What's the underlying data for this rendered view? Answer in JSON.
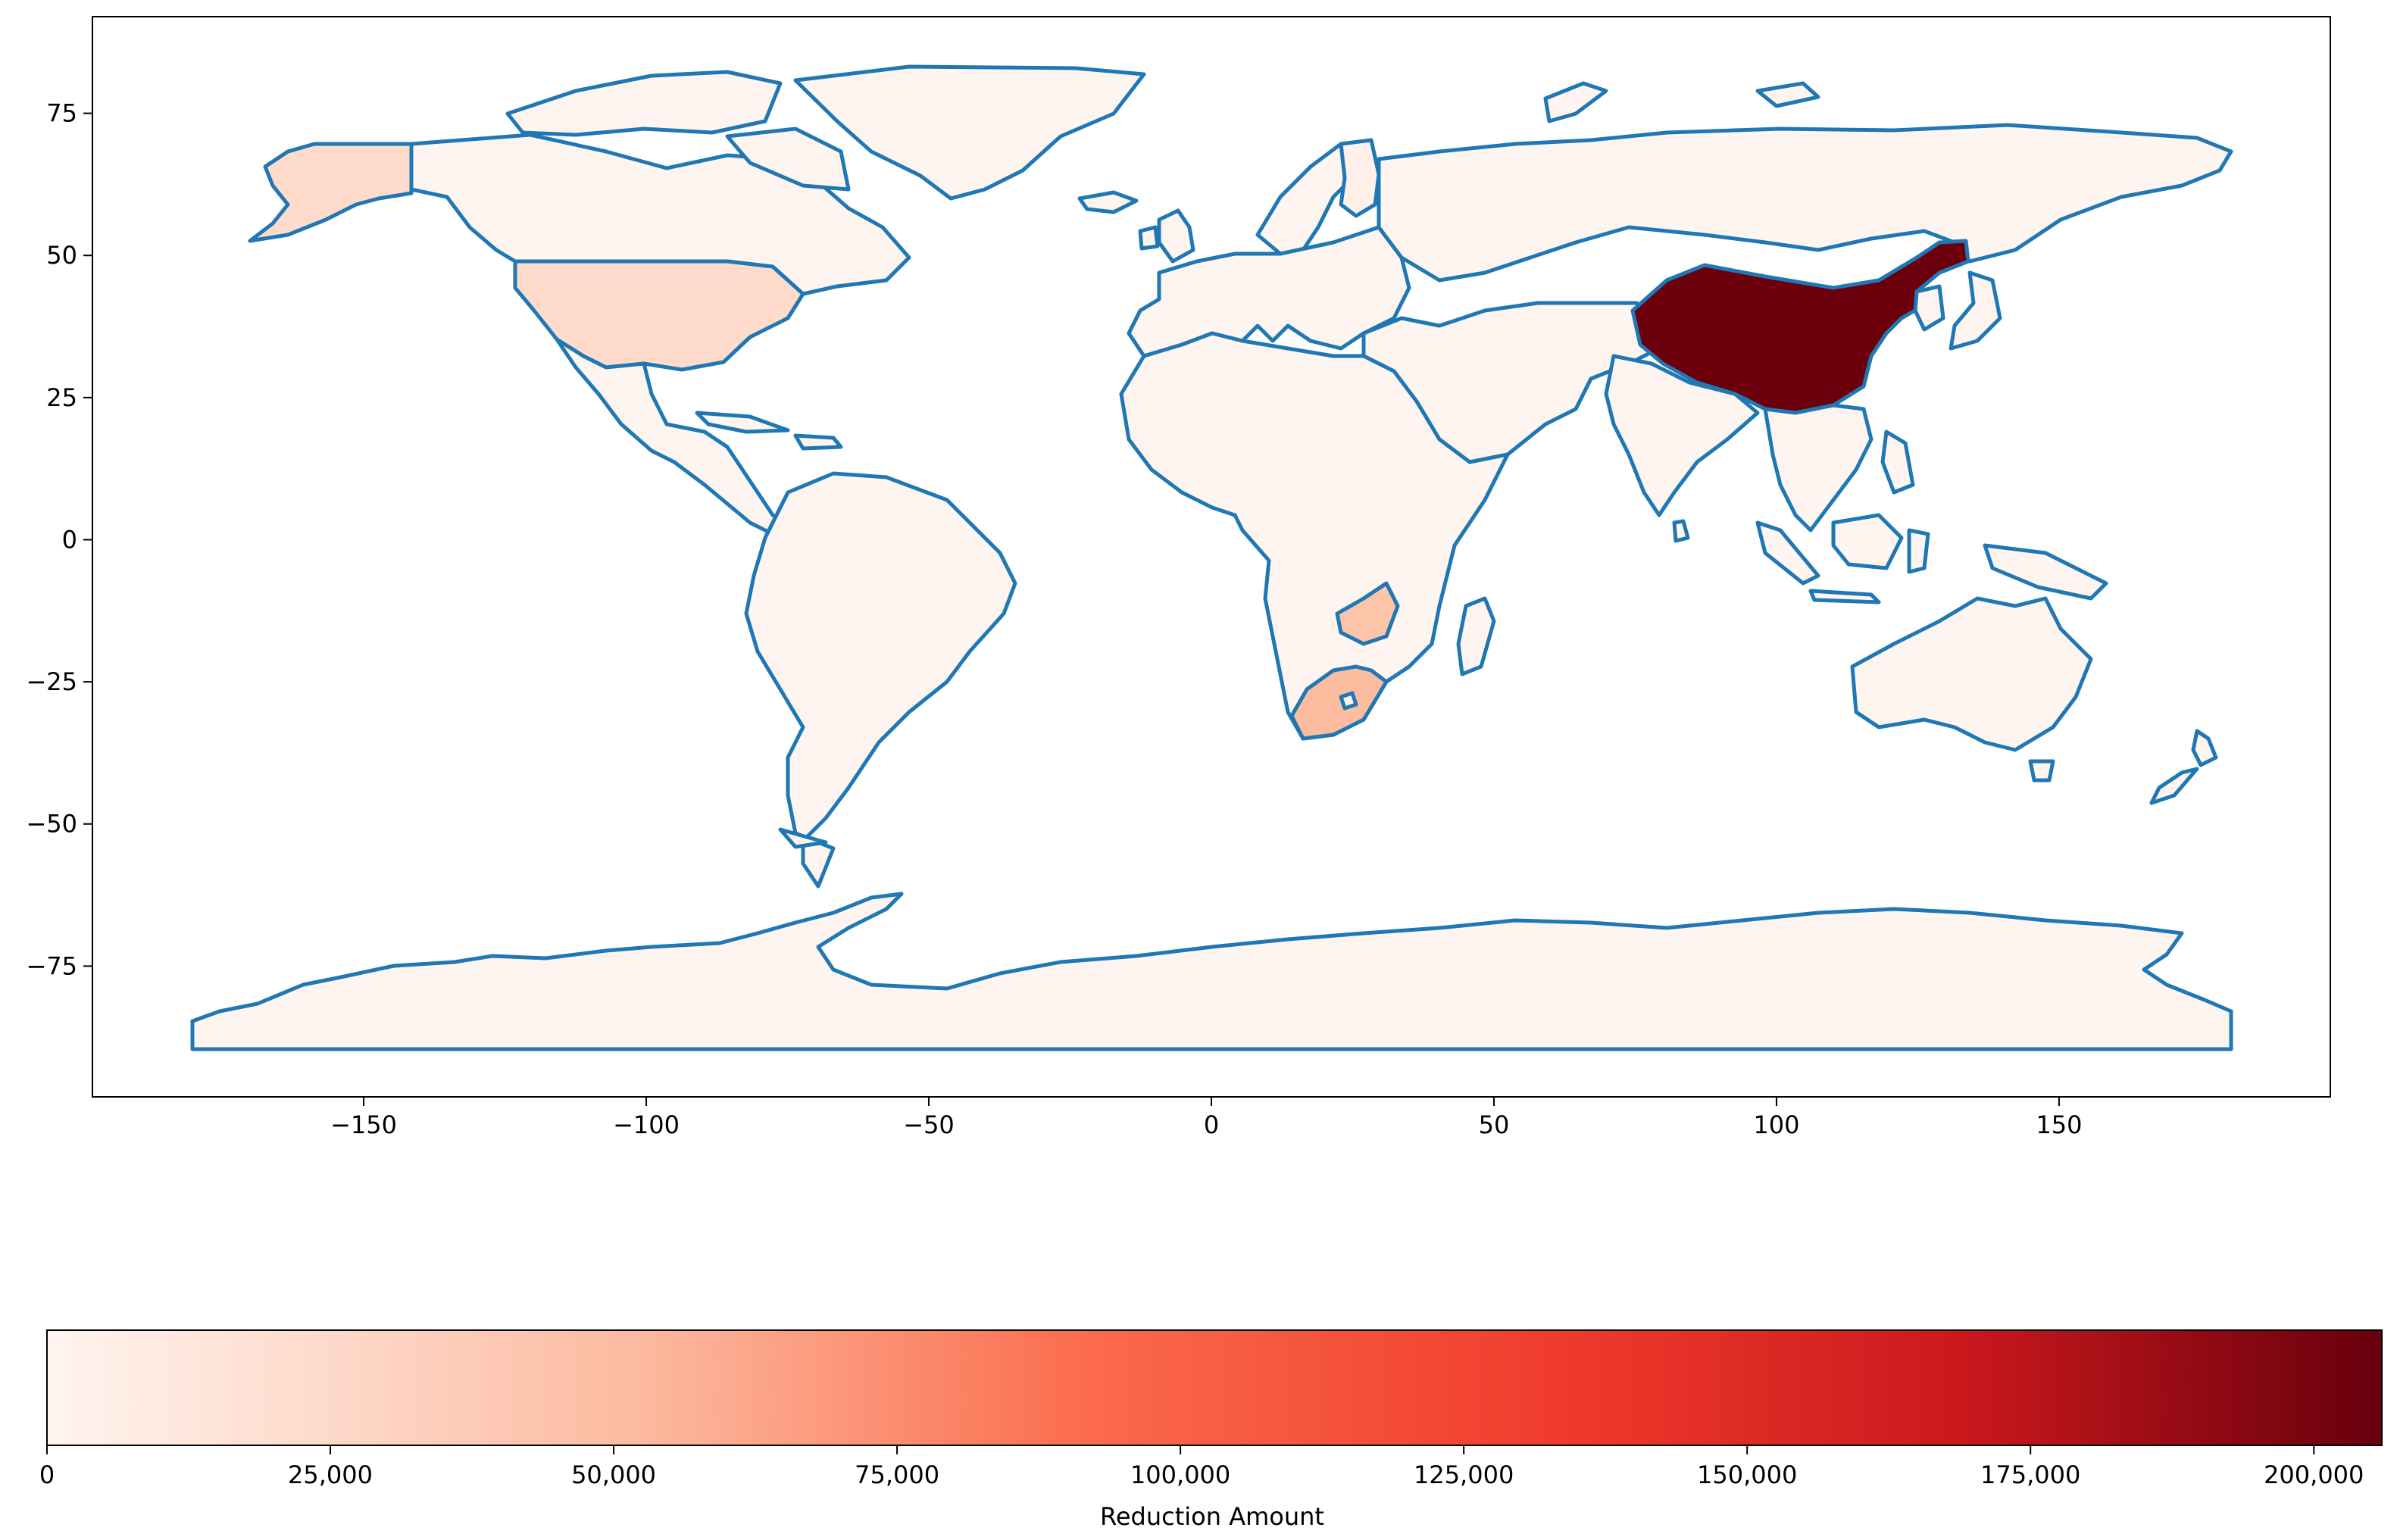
{
  "map": {
    "x_axis": {
      "range": [
        -198,
        198
      ],
      "ticks": [
        {
          "value": -150,
          "label": "−150"
        },
        {
          "value": -100,
          "label": "−100"
        },
        {
          "value": -50,
          "label": "−50"
        },
        {
          "value": 0,
          "label": "0"
        },
        {
          "value": 50,
          "label": "50"
        },
        {
          "value": 100,
          "label": "100"
        },
        {
          "value": 150,
          "label": "150"
        }
      ]
    },
    "y_axis": {
      "range": [
        -98,
        92
      ],
      "ticks": [
        {
          "value": 75,
          "label": "75"
        },
        {
          "value": 50,
          "label": "50"
        },
        {
          "value": 25,
          "label": "25"
        },
        {
          "value": 0,
          "label": "0"
        },
        {
          "value": -25,
          "label": "−25"
        },
        {
          "value": -50,
          "label": "−50"
        },
        {
          "value": -75,
          "label": "−75"
        }
      ]
    },
    "colors": {
      "border": "#1f77b4",
      "base_fill": "#fff5f0",
      "colormap": [
        "#fff5f0",
        "#fcbba1",
        "#fb6a4a",
        "#ef3b2c",
        "#cb181d",
        "#67000d"
      ]
    },
    "highlighted_regions": [
      {
        "region": "China",
        "value": 202000,
        "fill": "#6b000c"
      },
      {
        "region": "South Africa",
        "value": 48000,
        "fill": "#fcbca0"
      },
      {
        "region": "Zimbabwe",
        "value": 45000,
        "fill": "#fcc4a8"
      },
      {
        "region": "United States",
        "value": 18000,
        "fill": "#fedbcb"
      },
      {
        "region": "Alaska",
        "value": 18000,
        "fill": "#fedbcb"
      }
    ]
  },
  "colorbar": {
    "label": "Reduction Amount",
    "min": 0,
    "max": 206000,
    "ticks": [
      {
        "value": 0,
        "label": "0"
      },
      {
        "value": 25000,
        "label": "25,000"
      },
      {
        "value": 50000,
        "label": "50,000"
      },
      {
        "value": 75000,
        "label": "75,000"
      },
      {
        "value": 100000,
        "label": "100,000"
      },
      {
        "value": 125000,
        "label": "125,000"
      },
      {
        "value": 150000,
        "label": "150,000"
      },
      {
        "value": 175000,
        "label": "175,000"
      },
      {
        "value": 200000,
        "label": "200,000"
      }
    ]
  }
}
